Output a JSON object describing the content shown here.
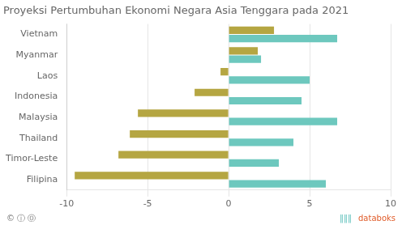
{
  "chart_data": {
    "type": "bar",
    "orientation": "horizontal",
    "title": "Proyeksi Pertumbuhan Ekonomi Negara Asia Tenggara pada 2021",
    "categories": [
      "Vietnam",
      "Myanmar",
      "Laos",
      "Indonesia",
      "Malaysia",
      "Thailand",
      "Timor-Leste",
      "Filipina"
    ],
    "series": [
      {
        "color": "#b5a642",
        "values": [
          2.8,
          1.8,
          -0.5,
          -2.1,
          -5.6,
          -6.1,
          -6.8,
          -9.5
        ]
      },
      {
        "color": "#6dc8be",
        "values": [
          6.7,
          2.0,
          5.0,
          4.5,
          6.7,
          4.0,
          3.1,
          6.0
        ]
      }
    ],
    "xlim": [
      -10,
      10
    ],
    "xticks": [
      -10,
      -5,
      0,
      5,
      10
    ],
    "grid": true,
    "annotations": [
      {
        "text": "© ⓘ Ⓞ",
        "color": "#777777"
      },
      {
        "text": "‖‖‖",
        "color": "#5bbfba"
      },
      {
        "text": "databoks",
        "color": "#e05c2a"
      }
    ]
  }
}
